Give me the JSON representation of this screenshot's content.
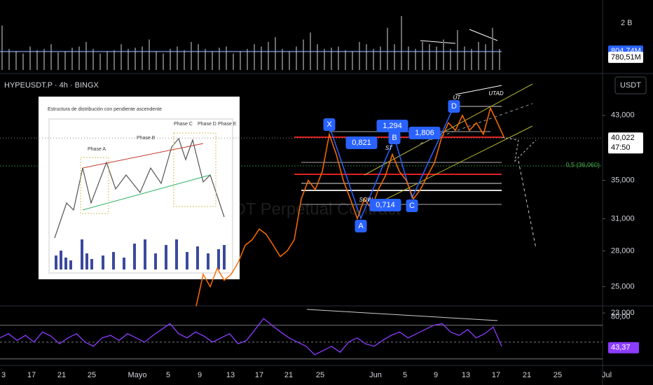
{
  "chart_data": [
    {
      "type": "bar",
      "color": "#6b6b6b",
      "ylim": [
        0,
        2836
      ],
      "yticks": [
        {
          "value": 2000,
          "label": "2 B"
        }
      ],
      "values": [
        1900,
        900,
        800,
        700,
        1000,
        850,
        900,
        1100,
        750,
        800,
        950,
        1000,
        1200,
        900,
        700,
        800,
        850,
        1100,
        900,
        950,
        1000,
        1300,
        800,
        700,
        900,
        1000,
        850,
        1200,
        1100,
        900,
        800,
        950,
        1000,
        700,
        800,
        900,
        1100,
        1000,
        1200,
        1400,
        900,
        800,
        1000,
        1300,
        1600,
        1100,
        900,
        950,
        1000,
        850,
        800,
        1200,
        1100,
        900,
        1000,
        1800,
        1100,
        2300,
        1000,
        900,
        1200,
        1100,
        1000,
        1300,
        900,
        1700,
        1000,
        900,
        1200,
        1100,
        1800,
        900
      ],
      "badges": [
        {
          "value": 804.74,
          "label": "804,74M",
          "color": "#2962ff"
        },
        {
          "value": 780.51,
          "label": "780,51M",
          "color": "#ffffff"
        }
      ]
    },
    {
      "type": "line",
      "title": "HYPEUSDT.P · 4h · BINGX",
      "currency": "USDT",
      "watermark": "USDT Perpetual Contract",
      "color": "#ff6d00",
      "log_scale": true,
      "ylim": [
        22.6,
        49.1
      ],
      "yticks": [
        {
          "value": 43,
          "label": "43,000"
        },
        {
          "value": 35,
          "label": "35,000"
        },
        {
          "value": 31,
          "label": "31,000"
        },
        {
          "value": 28,
          "label": "28,000"
        },
        {
          "value": 25,
          "label": "25,000"
        },
        {
          "value": 23,
          "label": "23,000"
        }
      ],
      "values": [
        23.5,
        26,
        25,
        26.5,
        25.5,
        26,
        27,
        28.5,
        29,
        30,
        29.5,
        28.5,
        27.5,
        28,
        29,
        33,
        35,
        34,
        36,
        40.5,
        38,
        35,
        33,
        31,
        33,
        32,
        34,
        35.5,
        38,
        36,
        35,
        33,
        34,
        35.5,
        37,
        40,
        42,
        41,
        43,
        41,
        42,
        40.5,
        44,
        42,
        40
      ],
      "last_price": {
        "value": 40.022,
        "label": "40,022"
      },
      "countdown": "47:50",
      "level": {
        "value": 36.06,
        "label": "0,5 (36,060)"
      },
      "annotations": [
        "X",
        "1,294",
        "B",
        "0,821",
        "1,806",
        "D",
        "UT",
        "UTAD",
        "ST",
        "SOW",
        "A",
        "0,714",
        "C"
      ],
      "time_axis": [
        "3",
        "17",
        "21",
        "25",
        "Mayo",
        "5",
        "9",
        "13",
        "17",
        "21",
        "25",
        "Jun",
        "5",
        "9",
        "13",
        "17",
        "21",
        "25",
        "Jul"
      ]
    },
    {
      "type": "line",
      "color": "#8c3cff",
      "ylim": [
        24,
        93
      ],
      "bands": [
        70,
        50,
        30
      ],
      "yticks": [
        {
          "value": 80,
          "label": "80,00"
        }
      ],
      "values": [
        55,
        60,
        52,
        58,
        50,
        62,
        57,
        48,
        55,
        60,
        50,
        45,
        55,
        58,
        52,
        60,
        55,
        50,
        58,
        65,
        72,
        60,
        55,
        62,
        57,
        50,
        55,
        60,
        48,
        52,
        65,
        78,
        70,
        62,
        55,
        50,
        45,
        35,
        40,
        45,
        38,
        50,
        55,
        48,
        45,
        52,
        58,
        62,
        55,
        60,
        65,
        70,
        72,
        62,
        58,
        65,
        55,
        60,
        68,
        45
      ],
      "last": {
        "value": 43.37,
        "label": "43,37"
      }
    }
  ],
  "inset": {
    "title": "Estructura de distribución con pendiente ascendente",
    "phases": [
      "Phase A",
      "Phase B",
      "Phase C",
      "Phase D",
      "Phase E"
    ]
  }
}
